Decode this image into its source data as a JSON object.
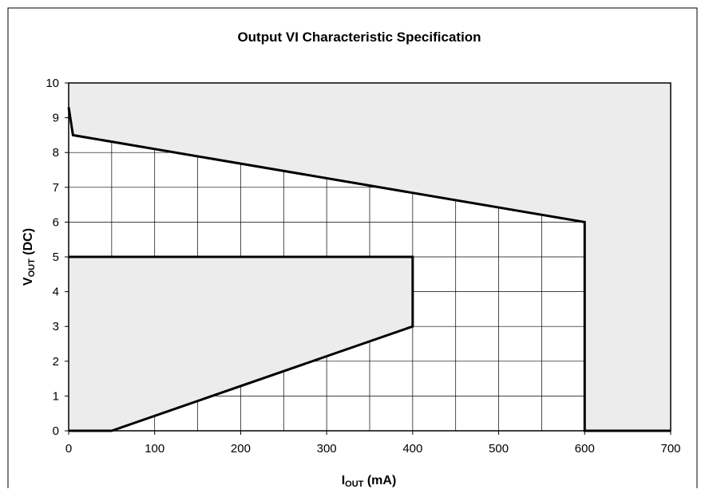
{
  "chart_data": {
    "type": "area",
    "title": "Output VI Characteristic Specification",
    "xlabel": {
      "main": "I",
      "sub": "OUT",
      "suffix": " (mA)"
    },
    "ylabel": {
      "main": "V",
      "sub": "OUT",
      "suffix": " (DC)"
    },
    "xlim": [
      0,
      700
    ],
    "ylim": [
      0,
      10
    ],
    "x_ticks": [
      0,
      100,
      200,
      300,
      400,
      500,
      600,
      700
    ],
    "y_ticks": [
      0,
      1,
      2,
      3,
      4,
      5,
      6,
      7,
      8,
      9,
      10
    ],
    "grid": {
      "enabled": true,
      "x_minor_step": 50,
      "y_major_step": 1
    },
    "legend": "none",
    "colors": {
      "region_fill": "#ececec",
      "grid": "#000000",
      "boundary": "#000000",
      "frame": "#000000"
    },
    "series": [
      {
        "role": "upper-forbidden-region",
        "points": [
          [
            0,
            10
          ],
          [
            700,
            10
          ],
          [
            700,
            0
          ],
          [
            600,
            0
          ],
          [
            600,
            6
          ],
          [
            5,
            8.5
          ],
          [
            0,
            9.3
          ]
        ]
      },
      {
        "role": "lower-forbidden-region",
        "points": [
          [
            0,
            5
          ],
          [
            400,
            5
          ],
          [
            400,
            3
          ],
          [
            50,
            0
          ],
          [
            0,
            0
          ]
        ]
      }
    ],
    "boundaries": [
      {
        "points": [
          [
            0,
            9.3
          ],
          [
            5,
            8.5
          ],
          [
            600,
            6
          ],
          [
            600,
            0
          ],
          [
            700,
            0
          ]
        ]
      },
      {
        "points": [
          [
            0,
            5
          ],
          [
            400,
            5
          ],
          [
            400,
            3
          ],
          [
            50,
            0
          ],
          [
            0,
            0
          ]
        ]
      }
    ]
  }
}
